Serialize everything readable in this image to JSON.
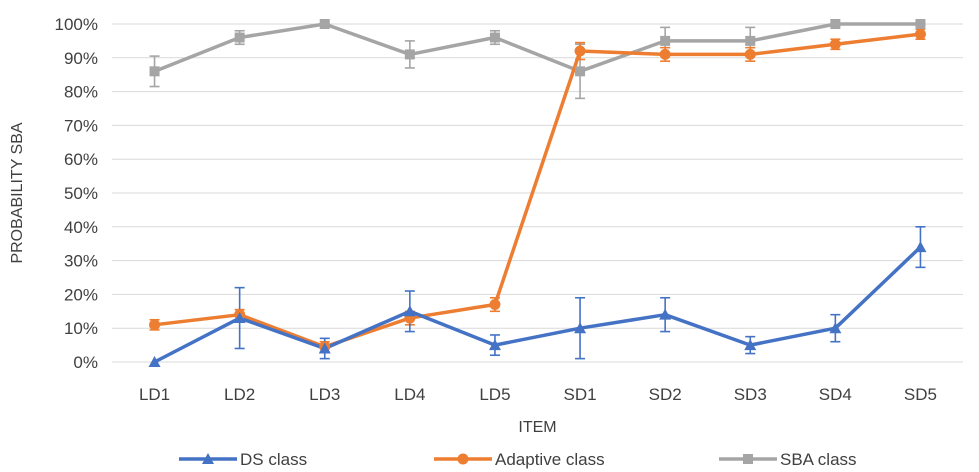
{
  "chart_data": {
    "type": "line",
    "title": "",
    "xlabel": "ITEM",
    "ylabel": "PROBABILITY SBA",
    "categories": [
      "LD1",
      "LD2",
      "LD3",
      "LD4",
      "LD5",
      "SD1",
      "SD2",
      "SD3",
      "SD4",
      "SD5"
    ],
    "ylim": [
      0,
      100
    ],
    "y_ticks": [
      0,
      10,
      20,
      30,
      40,
      50,
      60,
      70,
      80,
      90,
      100
    ],
    "y_tick_format": "percent",
    "grid": true,
    "legend_position": "bottom",
    "series": [
      {
        "name": "DS class",
        "color": "#4472C4",
        "marker": "triangle",
        "values": [
          0,
          13,
          4,
          15,
          5,
          10,
          14,
          5,
          10,
          34
        ],
        "error": [
          0,
          9,
          3,
          6,
          3,
          9,
          5,
          2.5,
          4,
          6
        ]
      },
      {
        "name": "Adaptive class",
        "color": "#ED7D31",
        "marker": "circle",
        "values": [
          11,
          14,
          4.5,
          13,
          17,
          92,
          91,
          91,
          94,
          97
        ],
        "error": [
          1.5,
          1.5,
          1.5,
          2,
          2,
          2.5,
          2,
          2,
          1.5,
          1.5
        ]
      },
      {
        "name": "SBA class",
        "color": "#A5A5A5",
        "marker": "square",
        "values": [
          86,
          96,
          100,
          91,
          96,
          86,
          95,
          95,
          100,
          100
        ],
        "error": [
          4.5,
          2,
          0.5,
          4,
          2,
          8,
          4,
          4,
          0.5,
          0.5
        ]
      }
    ]
  }
}
